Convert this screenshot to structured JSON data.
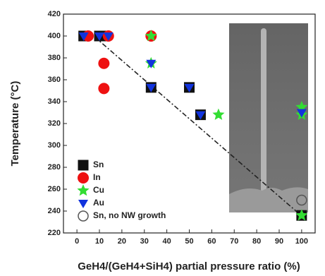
{
  "chart_data": {
    "type": "scatter",
    "xlabel": "GeH4/(GeH4+SiH4) partial pressure ratio (%)",
    "ylabel": "Temperature (°C)",
    "xlim": [
      -6,
      106
    ],
    "ylim": [
      220,
      420
    ],
    "xticks": [
      0,
      10,
      20,
      30,
      40,
      50,
      60,
      70,
      80,
      90,
      100
    ],
    "yticks": [
      220,
      240,
      260,
      280,
      300,
      320,
      340,
      360,
      380,
      400,
      420
    ],
    "legend": "lower left",
    "series": [
      {
        "name": "Sn",
        "color": "#111111",
        "marker": "square",
        "x": [
          3,
          10,
          12,
          33,
          50,
          55,
          100
        ],
        "values": [
          400,
          400,
          400,
          353,
          353,
          328,
          236
        ]
      },
      {
        "name": "In",
        "color": "#ee1111",
        "marker": "circle",
        "x": [
          5,
          14,
          12,
          12,
          33
        ],
        "values": [
          400,
          400,
          375,
          352,
          400
        ]
      },
      {
        "name": "Cu",
        "color": "#33dd33",
        "marker": "star",
        "x": [
          33,
          33,
          63,
          100,
          100,
          100
        ],
        "values": [
          400,
          375,
          328,
          335,
          328,
          236
        ]
      },
      {
        "name": "Au",
        "color": "#1133dd",
        "marker": "triangle",
        "x": [
          3,
          10,
          14,
          33,
          33,
          50,
          55,
          100
        ],
        "values": [
          400,
          400,
          400,
          375,
          353,
          353,
          328,
          330
        ]
      },
      {
        "name": "Sn, no NW growth",
        "color": "#555555",
        "marker": "open-circle",
        "x": [
          100
        ],
        "values": [
          250
        ]
      }
    ]
  }
}
